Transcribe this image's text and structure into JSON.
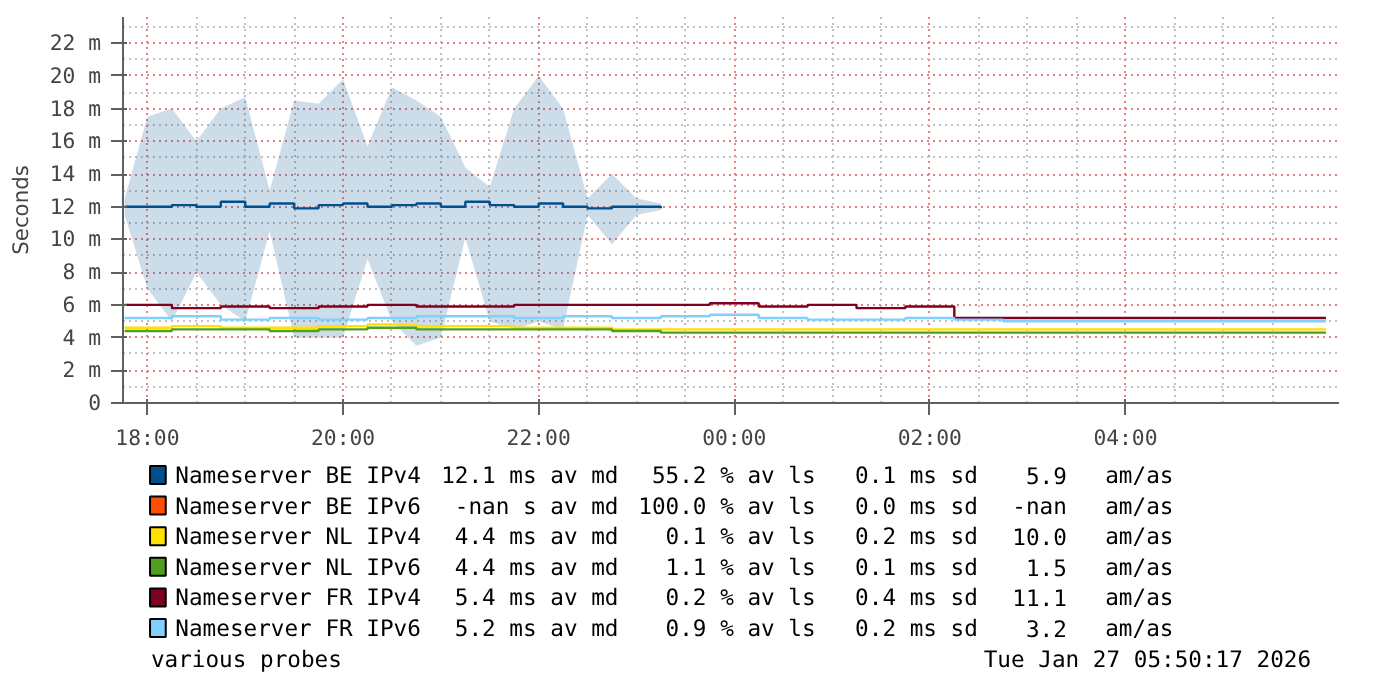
{
  "chart_data": {
    "type": "step",
    "ylabel": "Seconds",
    "xlim": [
      "2026-01-26T17:45",
      "2026-01-27T06:11"
    ],
    "ylim": [
      0,
      23.6
    ],
    "xticks": [
      {
        "value": "2026-01-26T18:00",
        "label": "18:00"
      },
      {
        "value": "2026-01-26T20:00",
        "label": "20:00"
      },
      {
        "value": "2026-01-26T22:00",
        "label": "22:00"
      },
      {
        "value": "2026-01-27T00:00",
        "label": "00:00"
      },
      {
        "value": "2026-01-27T02:00",
        "label": "02:00"
      },
      {
        "value": "2026-01-27T04:00",
        "label": "04:00"
      }
    ],
    "yticks": [
      0,
      {
        "value": 2,
        "label": "2 m"
      },
      {
        "value": 4,
        "label": "4 m"
      },
      {
        "value": 6,
        "label": "6 m"
      },
      {
        "value": 8,
        "label": "8 m"
      },
      {
        "value": 10,
        "label": "10 m"
      },
      {
        "value": 12,
        "label": "12 m"
      },
      {
        "value": 14,
        "label": "14 m"
      },
      {
        "value": 16,
        "label": "16 m"
      },
      {
        "value": 18,
        "label": "18 m"
      },
      {
        "value": 20,
        "label": "20 m"
      },
      {
        "value": 22,
        "label": "22 m"
      }
    ],
    "grid": true,
    "legend": "bottom",
    "marker": "none",
    "line_style": "solid",
    "series": [
      {
        "name": "Nameserver BE IPv4",
        "color": "#004f8f",
        "x": [
          "2026-01-26T17:46",
          "2026-01-26T18:00",
          "2026-01-26T18:15",
          "2026-01-26T18:30",
          "2026-01-26T18:45",
          "2026-01-26T19:00",
          "2026-01-26T19:15",
          "2026-01-26T19:30",
          "2026-01-26T19:45",
          "2026-01-26T20:00",
          "2026-01-26T20:15",
          "2026-01-26T20:30",
          "2026-01-26T20:45",
          "2026-01-26T21:00",
          "2026-01-26T21:15",
          "2026-01-26T21:30",
          "2026-01-26T21:45",
          "2026-01-26T22:00",
          "2026-01-26T22:15",
          "2026-01-26T22:30",
          "2026-01-26T22:45",
          "2026-01-26T23:00",
          "2026-01-26T23:15"
        ],
        "values": [
          12.0,
          12.0,
          12.1,
          12.0,
          12.3,
          12.0,
          12.2,
          11.9,
          12.1,
          12.2,
          12.0,
          12.1,
          12.2,
          12.0,
          12.3,
          12.1,
          12.0,
          12.2,
          12.0,
          11.9,
          12.0,
          12.0,
          11.9
        ],
        "upper": [
          12.5,
          17.5,
          18.0,
          16.0,
          18.0,
          18.7,
          13.0,
          18.5,
          18.3,
          19.8,
          15.7,
          19.3,
          18.5,
          17.5,
          14.4,
          13.2,
          18.0,
          20.0,
          18.0,
          12.5,
          14.0,
          12.5,
          12.2
        ],
        "lower": [
          11.5,
          7.0,
          5.0,
          8.0,
          6.0,
          5.0,
          10.5,
          4.0,
          4.0,
          4.0,
          8.8,
          5.0,
          3.5,
          4.0,
          10.1,
          5.0,
          4.5,
          5.0,
          4.5,
          11.5,
          9.7,
          11.5,
          11.8
        ]
      },
      {
        "name": "Nameserver BE IPv6",
        "color": "#ff4f00",
        "values": [
          null,
          null,
          null,
          null,
          null,
          null,
          null,
          null,
          null,
          null,
          null,
          null,
          null,
          null,
          null,
          null,
          null,
          null,
          null,
          null,
          null,
          null,
          null,
          null,
          null,
          null
        ]
      },
      {
        "name": "Nameserver NL IPv4",
        "color": "#ffe000",
        "values": [
          4.6,
          4.7,
          4.6,
          4.6,
          4.7,
          4.8,
          4.7,
          4.7,
          4.6,
          4.6,
          4.5,
          4.5,
          4.5,
          4.5,
          4.5,
          4.5,
          4.5,
          4.5,
          4.5,
          4.5,
          4.5,
          4.5,
          4.5,
          4.5,
          4.5,
          4.5
        ]
      },
      {
        "name": "Nameserver NL IPv6",
        "color": "#50a020",
        "values": [
          4.4,
          4.5,
          4.5,
          4.4,
          4.5,
          4.6,
          4.5,
          4.5,
          4.5,
          4.5,
          4.4,
          4.3,
          4.3,
          4.3,
          4.3,
          4.3,
          4.3,
          4.3,
          4.3,
          4.3,
          4.3,
          4.3,
          4.3,
          4.3,
          4.3,
          4.3
        ]
      },
      {
        "name": "Nameserver FR IPv4",
        "color": "#800020",
        "values": [
          6.0,
          5.8,
          5.9,
          5.8,
          5.9,
          6.0,
          5.9,
          5.9,
          6.0,
          6.0,
          6.0,
          6.0,
          6.1,
          5.9,
          6.0,
          5.8,
          5.9,
          5.2,
          5.2,
          5.2,
          5.2,
          5.2,
          5.2,
          5.2,
          5.2,
          5.2
        ]
      },
      {
        "name": "Nameserver FR IPv6",
        "color": "#7fcfff",
        "values": [
          5.2,
          5.3,
          5.1,
          5.2,
          5.1,
          5.2,
          5.3,
          5.3,
          5.2,
          5.3,
          5.2,
          5.3,
          5.4,
          5.2,
          5.1,
          5.1,
          5.2,
          5.1,
          5.0,
          5.0,
          5.0,
          5.0,
          5.0,
          5.0,
          5.0,
          5.0
        ]
      }
    ],
    "x": [
      "2026-01-26T17:46",
      "2026-01-26T18:15",
      "2026-01-26T18:45",
      "2026-01-26T19:15",
      "2026-01-26T19:45",
      "2026-01-26T20:15",
      "2026-01-26T20:45",
      "2026-01-26T21:15",
      "2026-01-26T21:45",
      "2026-01-26T22:15",
      "2026-01-26T22:45",
      "2026-01-26T23:15",
      "2026-01-26T23:45",
      "2026-01-27T00:15",
      "2026-01-27T00:45",
      "2026-01-27T01:15",
      "2026-01-27T01:45",
      "2026-01-27T02:15",
      "2026-01-27T02:45",
      "2026-01-27T03:15",
      "2026-01-27T03:45",
      "2026-01-27T04:15",
      "2026-01-27T04:45",
      "2026-01-27T05:15",
      "2026-01-27T05:45",
      "2026-01-27T06:03"
    ],
    "annotations": [
      "12.1 ms av md   55.2 % av ls   0.1 ms sd   5.9   am/as",
      "-nan s av md   100.0 % av ls   0.0 ms sd   -nan   am/as",
      "4.4 ms av md   0.1 % av ls   0.2 ms sd   10.0   am/as",
      "4.4 ms av md   1.1 % av ls   0.1 ms sd   1.5   am/as",
      "5.4 ms av md   0.2 % av ls   0.4 ms sd   11.1   am/as",
      "5.2 ms av md   0.9 % av ls   0.2 ms sd   3.2   am/as",
      "various probes",
      "Tue Jan 27 05:50:17 2026"
    ]
  }
}
